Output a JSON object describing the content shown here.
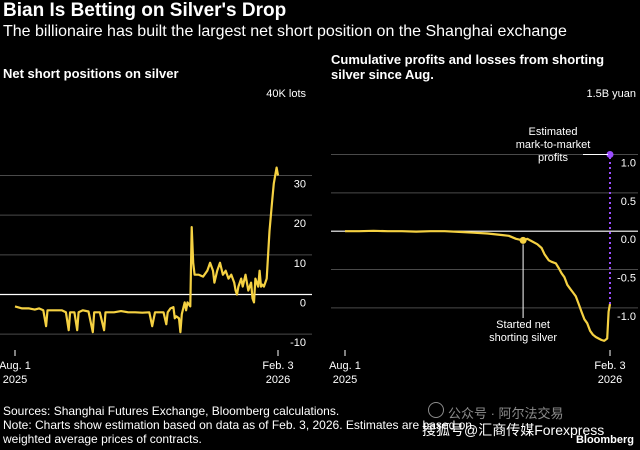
{
  "title": "Bian Is Betting on Silver's Drop",
  "subtitle": "The billionaire has built the largest net short position on the Shanghai exchange",
  "footer": {
    "sources": "Sources: Shanghai Futures Exchange, Bloomberg calculations.",
    "note_line1": "Note: Charts show estimation based on data as of Feb. 3, 2026. Estimates are based on",
    "note_line2": "weighted average prices of contracts."
  },
  "watermark": {
    "faint": "公众号 · 阿尔法交易",
    "main": "搜狐号@汇商传媒Forexpress"
  },
  "brand": "Bloomberg",
  "colors": {
    "background": "#000000",
    "line": "#f5d142",
    "mtm": "#9b4dff",
    "grid": "#4a4a4a",
    "zero": "#ffffff"
  },
  "chart_data": [
    {
      "type": "line",
      "title": "Net short positions on silver",
      "unit_label": "40K lots",
      "ylim": [
        -14,
        44
      ],
      "yticks": [
        -10,
        0,
        10,
        20,
        30
      ],
      "ytick_labels": [
        "-10",
        "0",
        "10",
        "20",
        "30"
      ],
      "xlim": [
        0,
        186
      ],
      "xticks": [
        0,
        186
      ],
      "xtick_labels": [
        [
          "Aug. 1",
          "2025"
        ],
        [
          "Feb. 3",
          "2026"
        ]
      ],
      "grid": true,
      "series": [
        {
          "values": [
            [
              0,
              -3
            ],
            [
              5,
              -3.5
            ],
            [
              10,
              -3.5
            ],
            [
              14,
              -3.8
            ],
            [
              17,
              -3.5
            ],
            [
              20,
              -4
            ],
            [
              22,
              -8
            ],
            [
              23,
              -4
            ],
            [
              28,
              -4
            ],
            [
              33,
              -4
            ],
            [
              36,
              -4.5
            ],
            [
              38,
              -9
            ],
            [
              39,
              -4.5
            ],
            [
              42,
              -4.5
            ],
            [
              44,
              -9
            ],
            [
              45,
              -4.5
            ],
            [
              48,
              -4
            ],
            [
              52,
              -4.3
            ],
            [
              55,
              -9.5
            ],
            [
              56,
              -4.5
            ],
            [
              60,
              -4.5
            ],
            [
              63,
              -9
            ],
            [
              64,
              -4.5
            ],
            [
              70,
              -4.5
            ],
            [
              75,
              -4.2
            ],
            [
              80,
              -4.5
            ],
            [
              85,
              -4.5
            ],
            [
              90,
              -4.6
            ],
            [
              95,
              -4.5
            ],
            [
              97,
              -8
            ],
            [
              99,
              -4.5
            ],
            [
              105,
              -4.5
            ],
            [
              107,
              -7.5
            ],
            [
              108,
              -4.5
            ],
            [
              110,
              -3.5
            ],
            [
              112,
              -3.2
            ],
            [
              113,
              -6
            ],
            [
              114,
              -5.5
            ],
            [
              116,
              -6
            ],
            [
              117,
              -9.5
            ],
            [
              118,
              -5
            ],
            [
              120,
              -2
            ],
            [
              121,
              -4
            ],
            [
              122,
              -2
            ],
            [
              124,
              -3
            ],
            [
              125,
              17
            ],
            [
              126,
              8
            ],
            [
              127,
              5
            ],
            [
              130,
              5
            ],
            [
              133,
              4.5
            ],
            [
              136,
              6
            ],
            [
              138,
              8
            ],
            [
              140,
              6
            ],
            [
              141,
              3
            ],
            [
              143,
              6
            ],
            [
              145,
              8
            ],
            [
              147,
              5
            ],
            [
              149,
              6
            ],
            [
              151,
              4
            ],
            [
              153,
              5
            ],
            [
              155,
              3
            ],
            [
              156,
              1
            ],
            [
              157,
              0
            ],
            [
              158,
              2
            ],
            [
              160,
              4
            ],
            [
              161,
              2
            ],
            [
              163,
              5
            ],
            [
              165,
              1
            ],
            [
              167,
              3
            ],
            [
              168,
              -1
            ],
            [
              169,
              -2
            ],
            [
              170,
              4
            ],
            [
              171,
              3
            ],
            [
              172,
              2
            ],
            [
              173,
              6
            ],
            [
              174,
              2
            ],
            [
              175,
              2.5
            ],
            [
              176,
              2
            ],
            [
              177,
              3
            ],
            [
              178,
              4
            ],
            [
              179,
              10
            ],
            [
              180,
              16
            ],
            [
              181,
              20
            ],
            [
              182,
              24
            ],
            [
              183,
              28
            ],
            [
              184,
              30
            ],
            [
              185,
              32
            ],
            [
              186,
              30
            ]
          ]
        }
      ]
    },
    {
      "type": "line",
      "title": "Cumulative profits and losses from shorting silver since Aug.",
      "title_lines": [
        "Cumulative profits and losses from shorting",
        "silver since Aug."
      ],
      "unit_label": "1.5B yuan",
      "ylim": [
        -1.55,
        1.45
      ],
      "yticks": [
        -1.0,
        -0.5,
        0.0,
        0.5,
        1.0
      ],
      "ytick_labels": [
        "-1.0",
        "-0.5",
        "0.0",
        "0.5",
        "1.0"
      ],
      "xlim": [
        0,
        186
      ],
      "xticks": [
        0,
        186
      ],
      "xtick_labels": [
        [
          "Aug. 1",
          "2025"
        ],
        [
          "Feb. 3",
          "2026"
        ]
      ],
      "grid": true,
      "series": [
        {
          "values": [
            [
              0,
              0
            ],
            [
              10,
              0
            ],
            [
              20,
              0.005
            ],
            [
              30,
              0
            ],
            [
              40,
              0
            ],
            [
              50,
              -0.005
            ],
            [
              60,
              0
            ],
            [
              70,
              0
            ],
            [
              80,
              -0.01
            ],
            [
              90,
              -0.02
            ],
            [
              100,
              -0.03
            ],
            [
              110,
              -0.05
            ],
            [
              115,
              -0.06
            ],
            [
              120,
              -0.1
            ],
            [
              125,
              -0.12
            ],
            [
              128,
              -0.1
            ],
            [
              130,
              -0.12
            ],
            [
              135,
              -0.17
            ],
            [
              138,
              -0.22
            ],
            [
              140,
              -0.3
            ],
            [
              143,
              -0.38
            ],
            [
              145,
              -0.4
            ],
            [
              148,
              -0.42
            ],
            [
              150,
              -0.48
            ],
            [
              152,
              -0.55
            ],
            [
              154,
              -0.6
            ],
            [
              156,
              -0.7
            ],
            [
              158,
              -0.75
            ],
            [
              160,
              -0.8
            ],
            [
              162,
              -0.85
            ],
            [
              164,
              -0.95
            ],
            [
              166,
              -1.05
            ],
            [
              168,
              -1.15
            ],
            [
              170,
              -1.2
            ],
            [
              172,
              -1.3
            ],
            [
              174,
              -1.35
            ],
            [
              176,
              -1.38
            ],
            [
              178,
              -1.4
            ],
            [
              180,
              -1.42
            ],
            [
              182,
              -1.43
            ],
            [
              184,
              -1.4
            ],
            [
              185,
              -1.05
            ],
            [
              186,
              -0.95
            ]
          ]
        },
        {
          "name": "Estimated mark-to-market profits",
          "style": "dotted",
          "values": [
            [
              186,
              -0.95
            ],
            [
              186,
              1.0
            ]
          ]
        }
      ],
      "annotations": [
        {
          "text_lines": [
            "Estimated",
            "mark-to-market",
            "profits"
          ],
          "x": 186,
          "y": 1.0
        },
        {
          "text_lines": [
            "Started net",
            "shorting silver"
          ],
          "x": 125,
          "y": -0.12
        }
      ]
    }
  ]
}
